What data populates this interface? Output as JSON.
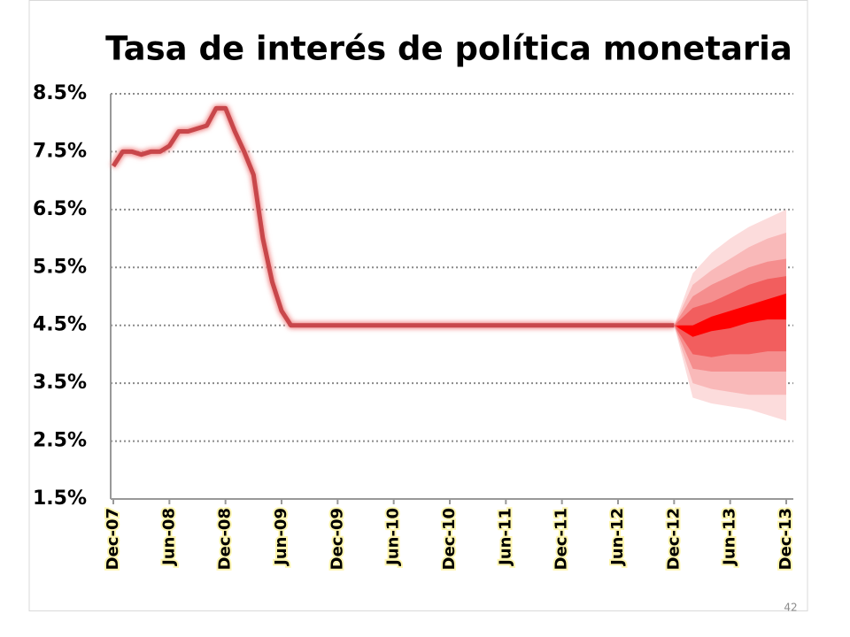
{
  "chart_data": {
    "type": "line",
    "title": "Tasa de interés de política monetaria",
    "x": [
      "Dec-07",
      "Jan-08",
      "Feb-08",
      "Mar-08",
      "Apr-08",
      "May-08",
      "Jun-08",
      "Jul-08",
      "Aug-08",
      "Sep-08",
      "Oct-08",
      "Nov-08",
      "Dec-08",
      "Jan-09",
      "Feb-09",
      "Mar-09",
      "Apr-09",
      "May-09",
      "Jun-09",
      "Jul-09",
      "Aug-09",
      "Sep-09",
      "Oct-09",
      "Nov-09",
      "Dec-09",
      "Jan-10",
      "Feb-10",
      "Mar-10",
      "Apr-10",
      "May-10",
      "Jun-10",
      "Jul-10",
      "Aug-10",
      "Sep-10",
      "Oct-10",
      "Nov-10",
      "Dec-10",
      "Jan-11",
      "Feb-11",
      "Mar-11",
      "Apr-11",
      "May-11",
      "Jun-11",
      "Jul-11",
      "Aug-11",
      "Sep-11",
      "Oct-11",
      "Nov-11",
      "Dec-11",
      "Jan-12",
      "Feb-12",
      "Mar-12",
      "Apr-12",
      "May-12",
      "Jun-12",
      "Jul-12",
      "Aug-12",
      "Sep-12",
      "Oct-12",
      "Nov-12",
      "Dec-12"
    ],
    "series": [
      {
        "color": "#c8474b",
        "values": [
          7.25,
          7.5,
          7.5,
          7.45,
          7.5,
          7.5,
          7.6,
          7.85,
          7.85,
          7.9,
          7.95,
          8.25,
          8.25,
          7.85,
          7.5,
          7.1,
          6.0,
          5.25,
          4.75,
          4.5,
          4.5,
          4.5,
          4.5,
          4.5,
          4.5,
          4.5,
          4.5,
          4.5,
          4.5,
          4.5,
          4.5,
          4.5,
          4.5,
          4.5,
          4.5,
          4.5,
          4.5,
          4.5,
          4.5,
          4.5,
          4.5,
          4.5,
          4.5,
          4.5,
          4.5,
          4.5,
          4.5,
          4.5,
          4.5,
          4.5,
          4.5,
          4.5,
          4.5,
          4.5,
          4.5,
          4.5,
          4.5,
          4.5,
          4.5,
          4.5,
          4.5
        ]
      }
    ],
    "fan": {
      "x": [
        "Dec-12",
        "Feb-13",
        "Apr-13",
        "Jun-13",
        "Aug-13",
        "Oct-13",
        "Dec-13"
      ],
      "bands": [
        {
          "color": "#fcdcdc",
          "upper": [
            4.5,
            5.4,
            5.75,
            6.0,
            6.2,
            6.35,
            6.5
          ],
          "lower": [
            4.5,
            3.25,
            3.15,
            3.1,
            3.05,
            2.95,
            2.85
          ]
        },
        {
          "color": "#f9b9b9",
          "upper": [
            4.5,
            5.2,
            5.45,
            5.65,
            5.85,
            6.0,
            6.1
          ],
          "lower": [
            4.5,
            3.5,
            3.4,
            3.35,
            3.3,
            3.3,
            3.3
          ]
        },
        {
          "color": "#f58e8e",
          "upper": [
            4.5,
            5.0,
            5.2,
            5.35,
            5.5,
            5.6,
            5.65
          ],
          "lower": [
            4.5,
            3.75,
            3.7,
            3.7,
            3.7,
            3.7,
            3.7
          ]
        },
        {
          "color": "#f25e5e",
          "upper": [
            4.5,
            4.8,
            4.9,
            5.05,
            5.2,
            5.3,
            5.35
          ],
          "lower": [
            4.5,
            4.0,
            3.95,
            4.0,
            4.0,
            4.05,
            4.05
          ]
        },
        {
          "color": "#ff0000",
          "upper": [
            4.5,
            4.5,
            4.65,
            4.75,
            4.85,
            4.95,
            5.05
          ],
          "lower": [
            4.5,
            4.3,
            4.4,
            4.45,
            4.55,
            4.6,
            4.6
          ]
        }
      ]
    },
    "xlim": [
      "Dec-07",
      "Dec-13"
    ],
    "xticks": [
      "Dec-07",
      "Jun-08",
      "Dec-08",
      "Jun-09",
      "Dec-09",
      "Jun-10",
      "Dec-10",
      "Jun-11",
      "Dec-11",
      "Jun-12",
      "Dec-12",
      "Jun-13",
      "Dec-13"
    ],
    "ylim": [
      1.5,
      8.5
    ],
    "yticks": [
      {
        "value": 1.5,
        "label": "1.5%"
      },
      {
        "value": 2.5,
        "label": "2.5%"
      },
      {
        "value": 3.5,
        "label": "3.5%"
      },
      {
        "value": 4.5,
        "label": "4.5%"
      },
      {
        "value": 5.5,
        "label": "5.5%"
      },
      {
        "value": 6.5,
        "label": "6.5%"
      },
      {
        "value": 7.5,
        "label": "7.5%"
      },
      {
        "value": 8.5,
        "label": "8.5%"
      }
    ],
    "grid": true
  },
  "slide": {
    "page_number": "42"
  }
}
